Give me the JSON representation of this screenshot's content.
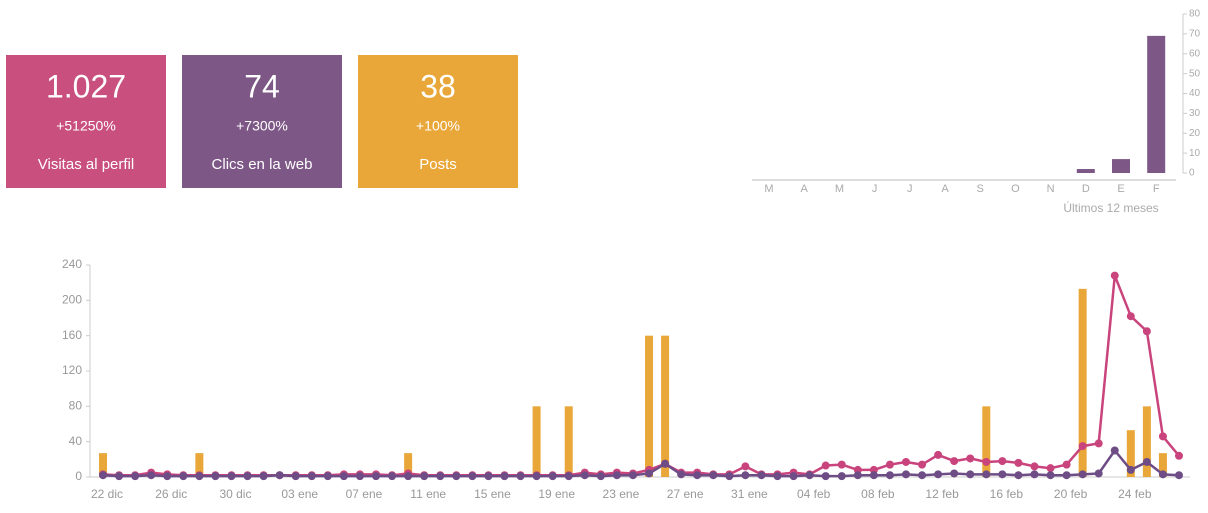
{
  "cards": [
    {
      "value": "1.027",
      "change": "+51250%",
      "label": "Visitas al perfil",
      "color": "#c9507e"
    },
    {
      "value": "74",
      "change": "+7300%",
      "label": "Clics en la web",
      "color": "#7d5785"
    },
    {
      "value": "38",
      "change": "+100%",
      "label": "Posts",
      "color": "#e9a73a"
    }
  ],
  "chart_data": [
    {
      "type": "bar",
      "categories": [
        "M",
        "A",
        "M",
        "J",
        "J",
        "A",
        "S",
        "O",
        "N",
        "D",
        "E",
        "F"
      ],
      "values": [
        0,
        0,
        0,
        0,
        0,
        0,
        0,
        0,
        0,
        2,
        7,
        69
      ],
      "color": "#7d5785",
      "x_label": "Últimos 12 meses",
      "ylim": [
        0,
        80
      ],
      "yticks": [
        0,
        10,
        20,
        30,
        40,
        50,
        60,
        70,
        80
      ]
    },
    {
      "type": "combo",
      "categories": [
        "22 dic",
        null,
        null,
        null,
        "26 dic",
        null,
        null,
        null,
        "30 dic",
        null,
        null,
        null,
        "03 ene",
        null,
        null,
        null,
        "07 ene",
        null,
        null,
        null,
        "11 ene",
        null,
        null,
        null,
        "15 ene",
        null,
        null,
        null,
        "19 ene",
        null,
        null,
        null,
        "23 ene",
        null,
        null,
        null,
        "27 ene",
        null,
        null,
        null,
        "31 ene",
        null,
        null,
        null,
        "04 feb",
        null,
        null,
        null,
        "08 feb",
        null,
        null,
        null,
        "12 feb",
        null,
        null,
        null,
        "16 feb",
        null,
        null,
        null,
        "20 feb",
        null,
        null,
        null,
        "24 feb",
        null,
        null,
        null
      ],
      "ylim": [
        0,
        240
      ],
      "yticks": [
        0,
        40,
        80,
        120,
        160,
        200,
        240
      ],
      "series": [
        {
          "type": "bar",
          "color": "#e9a73a",
          "values": [
            27,
            0,
            0,
            0,
            0,
            0,
            27,
            0,
            0,
            0,
            0,
            0,
            0,
            0,
            0,
            0,
            0,
            0,
            0,
            27,
            0,
            0,
            0,
            0,
            0,
            0,
            0,
            80,
            0,
            80,
            0,
            0,
            0,
            0,
            160,
            160,
            0,
            0,
            0,
            0,
            0,
            0,
            0,
            0,
            0,
            0,
            0,
            0,
            0,
            0,
            0,
            0,
            0,
            0,
            0,
            80,
            0,
            0,
            0,
            0,
            0,
            213,
            0,
            0,
            53,
            80,
            27,
            0
          ]
        },
        {
          "type": "line",
          "color": "#c9447c",
          "values": [
            3,
            2,
            2,
            5,
            3,
            2,
            2,
            2,
            2,
            2,
            2,
            2,
            2,
            2,
            2,
            3,
            3,
            3,
            2,
            4,
            2,
            2,
            2,
            2,
            2,
            2,
            2,
            2,
            2,
            2,
            5,
            3,
            5,
            4,
            8,
            15,
            5,
            5,
            3,
            3,
            12,
            3,
            3,
            5,
            3,
            13,
            14,
            8,
            8,
            14,
            17,
            14,
            25,
            18,
            21,
            17,
            18,
            16,
            12,
            10,
            14,
            35,
            38,
            228,
            182,
            165,
            46,
            24
          ]
        },
        {
          "type": "line",
          "color": "#6e4d86",
          "values": [
            2,
            1,
            1,
            2,
            1,
            1,
            1,
            1,
            1,
            1,
            1,
            2,
            1,
            1,
            1,
            1,
            1,
            1,
            1,
            1,
            1,
            1,
            1,
            1,
            1,
            1,
            1,
            1,
            1,
            1,
            2,
            1,
            2,
            2,
            4,
            15,
            3,
            2,
            2,
            1,
            2,
            2,
            1,
            1,
            2,
            1,
            1,
            2,
            2,
            2,
            3,
            2,
            3,
            4,
            3,
            3,
            3,
            2,
            3,
            2,
            2,
            3,
            4,
            30,
            8,
            17,
            3,
            2
          ]
        }
      ]
    }
  ]
}
